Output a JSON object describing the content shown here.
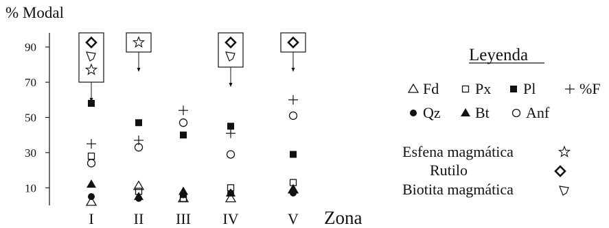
{
  "chart_data": {
    "type": "scatter",
    "ylabel": "% Modal",
    "xlabel": "Zona",
    "categories": [
      "I",
      "II",
      "III",
      "IV",
      "V"
    ],
    "yticks": [
      10,
      30,
      50,
      70,
      90
    ],
    "ylim": [
      0,
      100
    ],
    "series": [
      {
        "name": "Fd",
        "marker": "triangle-open",
        "values": [
          2,
          11,
          4,
          4,
          9
        ]
      },
      {
        "name": "Px",
        "marker": "square-open",
        "values": [
          28,
          8,
          4,
          10,
          13
        ]
      },
      {
        "name": "Pl",
        "marker": "square-filled",
        "values": [
          58,
          47,
          40,
          45,
          29
        ]
      },
      {
        "name": "%F",
        "marker": "plus",
        "values": [
          35,
          37,
          54,
          41,
          60
        ]
      },
      {
        "name": "Qz",
        "marker": "circle-filled",
        "values": [
          5,
          4,
          6,
          7,
          7
        ]
      },
      {
        "name": "Bt",
        "marker": "triangle-filled",
        "values": [
          12,
          5,
          8,
          7,
          9
        ]
      },
      {
        "name": "Anf",
        "marker": "circle-open",
        "values": [
          24,
          33,
          47,
          29,
          51
        ]
      }
    ],
    "accessory_boxes": [
      {
        "category": "I",
        "markers": [
          "diamond",
          "biotite",
          "star"
        ]
      },
      {
        "category": "II",
        "markers": [
          "star"
        ]
      },
      {
        "category": "IV",
        "markers": [
          "diamond",
          "biotite"
        ]
      },
      {
        "category": "V",
        "markers": [
          "diamond"
        ]
      }
    ],
    "legend": {
      "title": "Leyenda",
      "accessories": [
        {
          "label": "Esfena magmática",
          "marker": "star"
        },
        {
          "label": "Rutilo",
          "marker": "diamond"
        },
        {
          "label": "Biotita magmática",
          "marker": "biotite"
        }
      ]
    }
  }
}
